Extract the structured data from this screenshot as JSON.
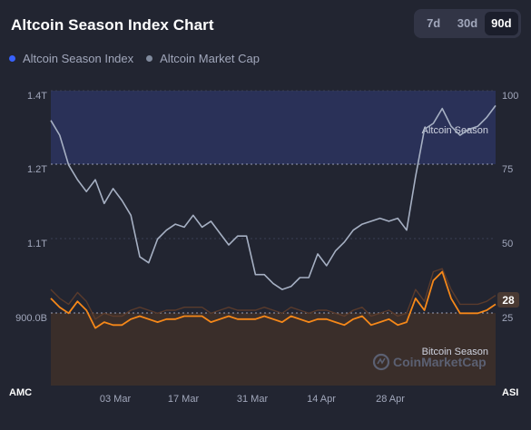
{
  "header": {
    "title": "Altcoin Season Index Chart"
  },
  "ranges": [
    {
      "label": "7d",
      "active": false
    },
    {
      "label": "30d",
      "active": false
    },
    {
      "label": "90d",
      "active": true
    }
  ],
  "legend": [
    {
      "label": "Altcoin Season Index",
      "color": "#3861fb"
    },
    {
      "label": "Altcoin Market Cap",
      "color": "#808a9d"
    }
  ],
  "bands": {
    "upper_label": "Altcoin Season",
    "lower_label": "Bitcoin Season"
  },
  "watermark": {
    "text": "CoinMarketCap",
    "icon": "coinmarketcap-logo-icon"
  },
  "current_value_badge": "28",
  "colors": {
    "index_line": "#f68819",
    "market_cap_line": "#a6b0c3",
    "altcoin_band": "#2a3158",
    "bitcoin_band": "#3a2e2a"
  },
  "chart_data": {
    "type": "line",
    "x_ticks": [
      "03 Mar",
      "17 Mar",
      "31 Mar",
      "14 Apr",
      "28 Apr"
    ],
    "x_range": [
      "2025-02-20",
      "2025-05-19"
    ],
    "left_axis": {
      "ticks": [
        "1.4T",
        "1.2T",
        "1.1T",
        "900.0B"
      ],
      "corner_label": "AMC"
    },
    "right_axis": {
      "ticks": [
        "100",
        "75",
        "50",
        "25"
      ],
      "corner_label": "ASI",
      "ylim": [
        0,
        100
      ]
    },
    "series": [
      {
        "name": "Altcoin Season Index",
        "values": [
          30,
          27,
          25,
          29,
          26,
          20,
          22,
          21,
          21,
          23,
          24,
          23,
          22,
          23,
          23,
          24,
          24,
          24,
          22,
          23,
          24,
          23,
          23,
          23,
          24,
          23,
          22,
          24,
          23,
          22,
          23,
          23,
          22,
          21,
          23,
          24,
          21,
          22,
          23,
          21,
          22,
          30,
          26,
          36,
          39,
          30,
          25,
          25,
          25,
          26,
          28
        ]
      },
      {
        "name": "Altcoin Market Cap",
        "values": [
          90,
          85,
          75,
          70,
          66,
          70,
          62,
          67,
          63,
          58,
          44,
          42,
          50,
          53,
          55,
          54,
          58,
          54,
          56,
          52,
          48,
          51,
          51,
          38,
          38,
          35,
          33,
          34,
          37,
          37,
          45,
          41,
          46,
          49,
          53,
          55,
          56,
          57,
          56,
          57,
          53,
          71,
          87,
          89,
          94,
          88,
          85,
          87,
          88,
          91,
          95
        ]
      }
    ]
  }
}
